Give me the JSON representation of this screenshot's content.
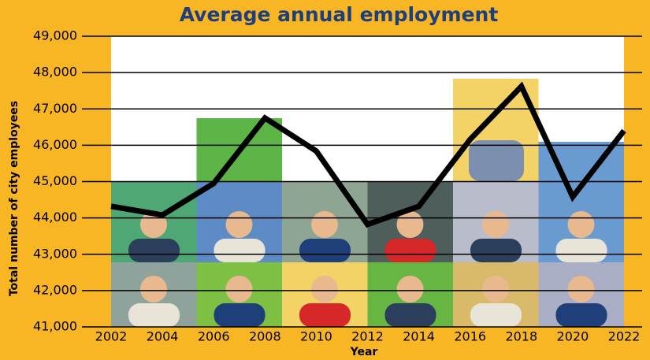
{
  "chart_data": {
    "type": "line",
    "title": "Average annual employment",
    "x_label": "Year",
    "y_label": "Total number of city employees",
    "x": [
      2002,
      2004,
      2006,
      2008,
      2010,
      2012,
      2014,
      2016,
      2018,
      2020,
      2022
    ],
    "values": [
      44320,
      44080,
      44950,
      46750,
      45840,
      43820,
      44320,
      46160,
      47620,
      44580,
      46400
    ],
    "color": "#000000",
    "xlim": [
      2002,
      2022
    ],
    "xticks": [
      2002,
      2004,
      2006,
      2008,
      2010,
      2012,
      2014,
      2016,
      2018,
      2020,
      2022
    ],
    "ylim": [
      41000,
      49000
    ],
    "yticks": [
      {
        "value": 41000,
        "label": "41,000"
      },
      {
        "value": 42000,
        "label": "42,000"
      },
      {
        "value": 43000,
        "label": "43,000"
      },
      {
        "value": 44000,
        "label": "44,000"
      },
      {
        "value": 45000,
        "label": "45,000"
      },
      {
        "value": 46000,
        "label": "46,000"
      },
      {
        "value": 47000,
        "label": "47,000"
      },
      {
        "value": 48000,
        "label": "48,000"
      },
      {
        "value": 49000,
        "label": "49,000"
      }
    ],
    "grid": true
  }
}
